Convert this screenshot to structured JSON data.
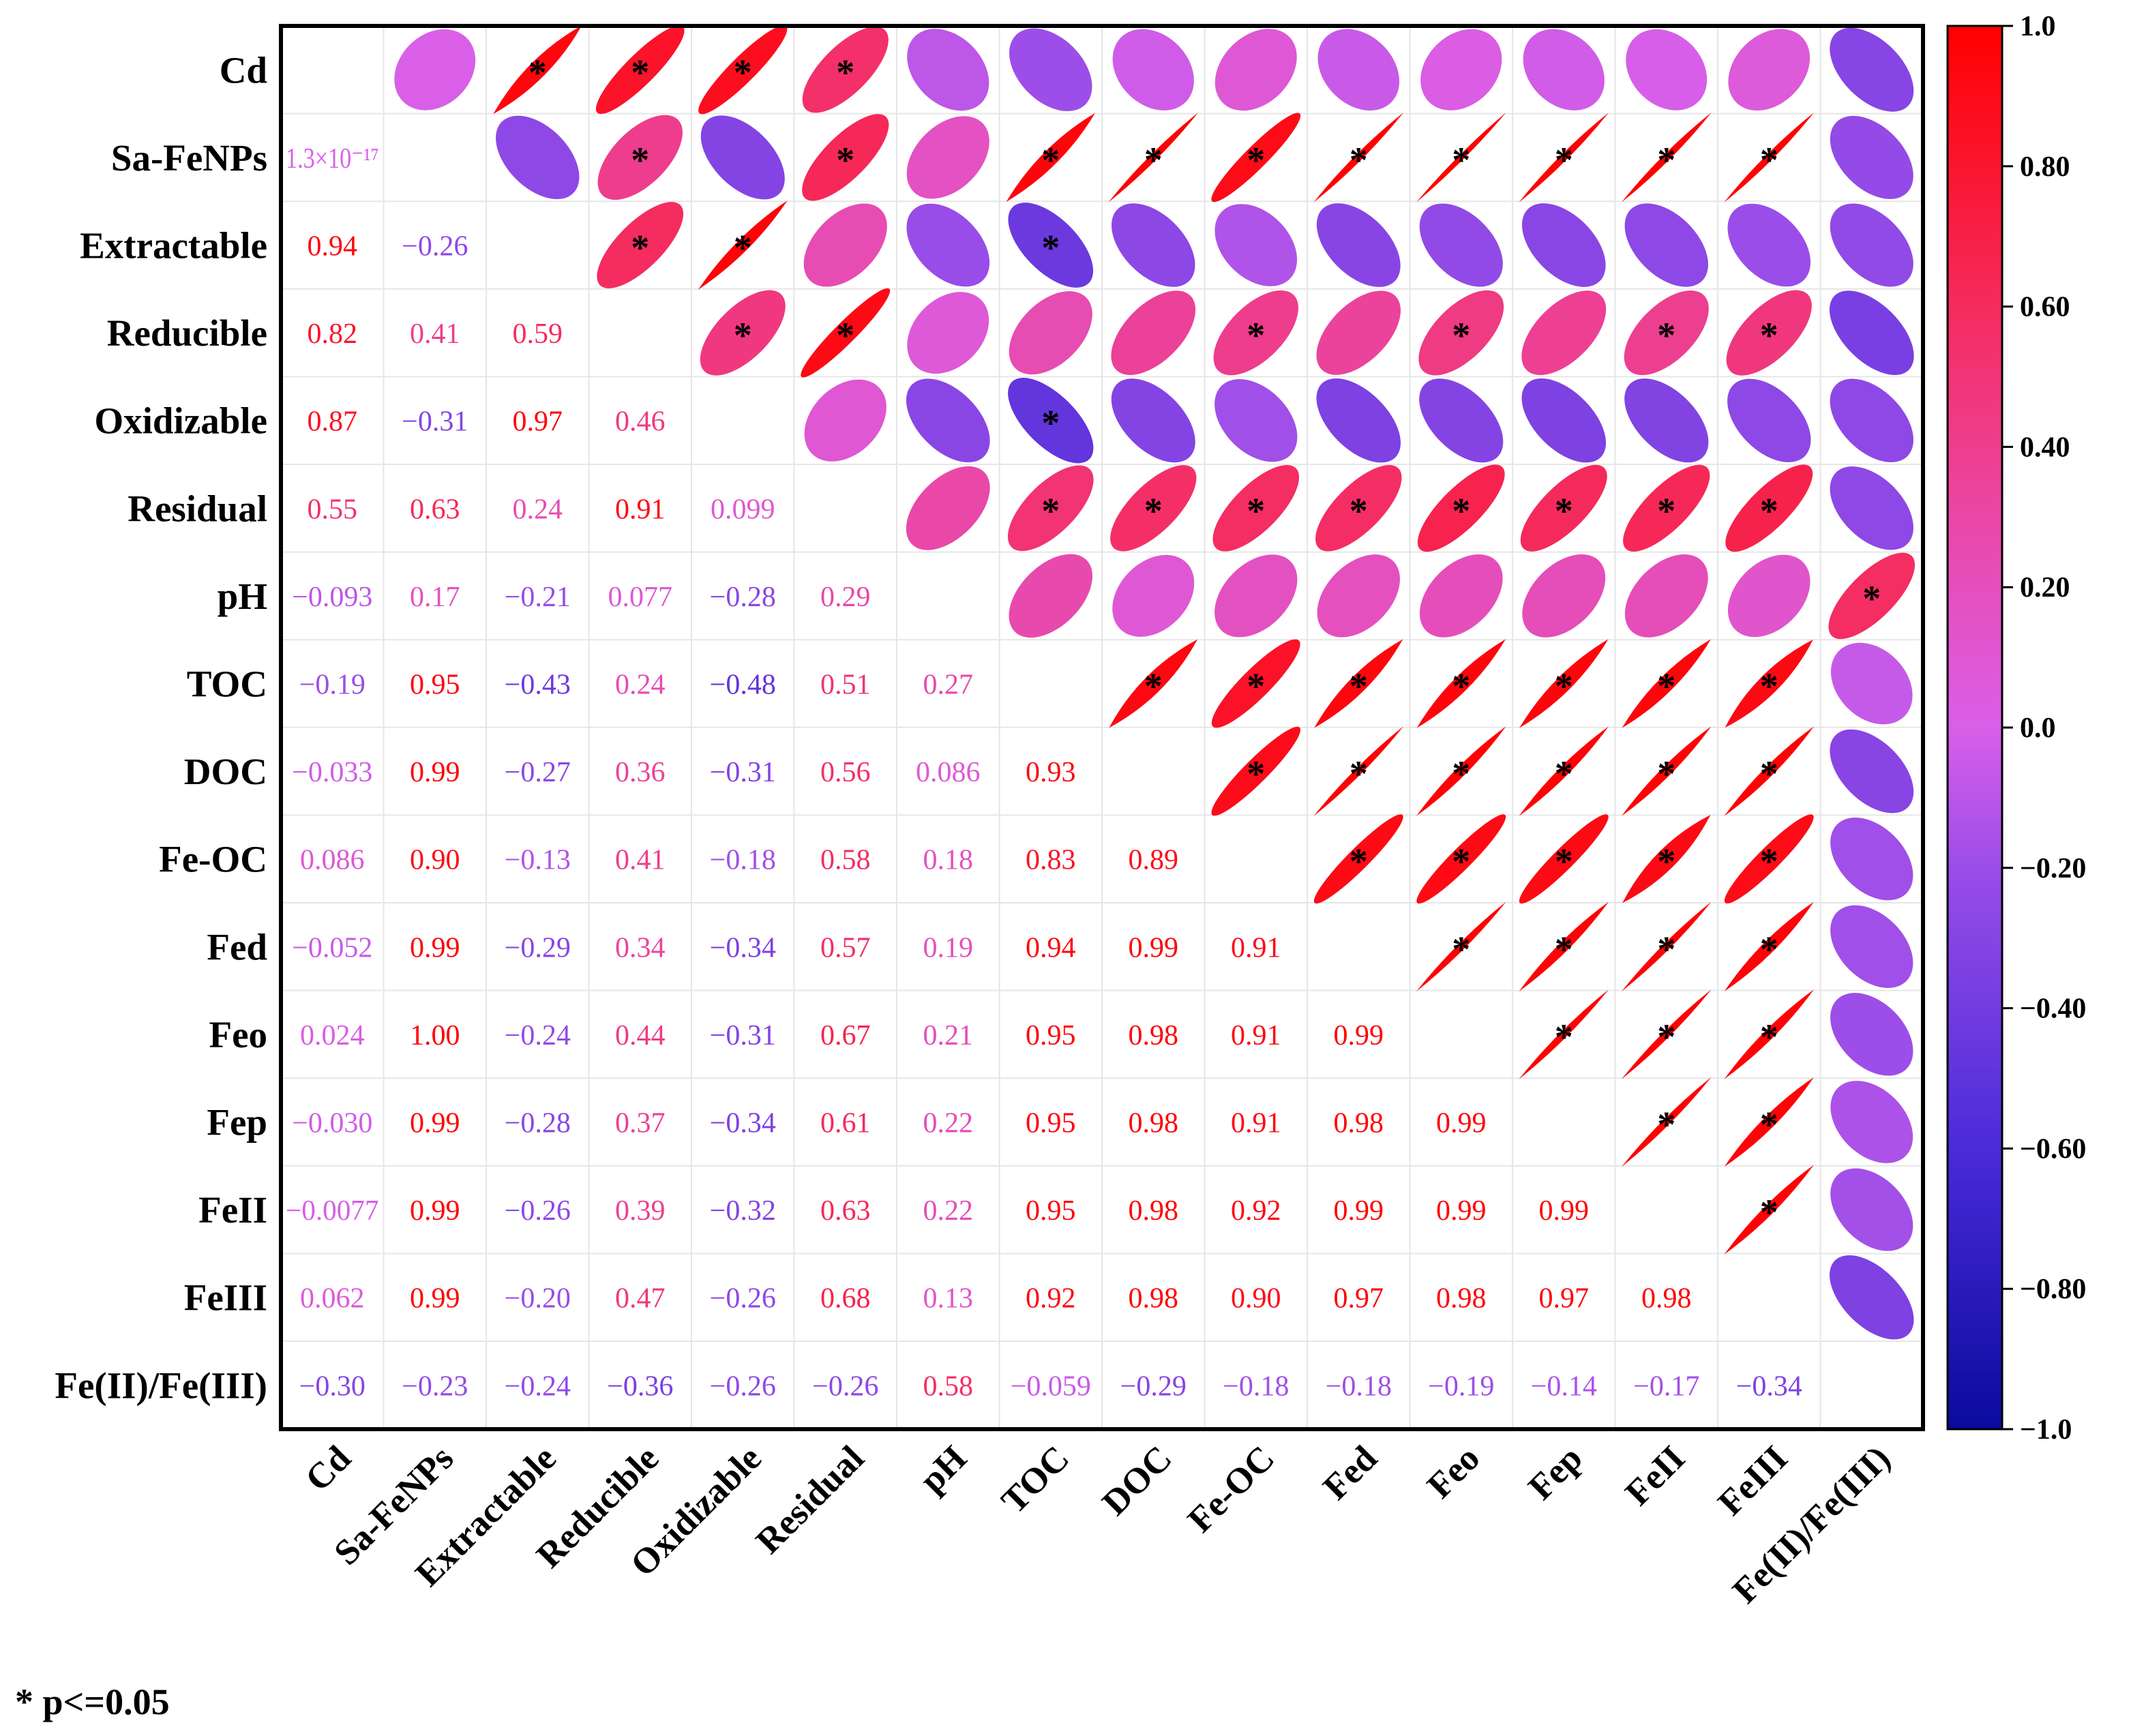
{
  "chart_data": {
    "type": "heatmap",
    "subtype": "correlation-matrix",
    "lower_triangle": "numeric correlation coefficients",
    "upper_triangle": "ellipses coloured by correlation, asterisk marks significance",
    "variables": [
      "Cd",
      "Sa-FeNPs",
      "Extractable",
      "Reducible",
      "Oxidizable",
      "Residual",
      "pH",
      "TOC",
      "DOC",
      "Fe-OC",
      "Fed",
      "Feo",
      "Fep",
      "FeII",
      "FeIII",
      "Fe(II)/Fe(III)"
    ],
    "lower_labels": [
      [],
      [
        "1.3×10⁻¹⁷"
      ],
      [
        "0.94",
        "−0.26"
      ],
      [
        "0.82",
        "0.41",
        "0.59"
      ],
      [
        "0.87",
        "−0.31",
        "0.97",
        "0.46"
      ],
      [
        "0.55",
        "0.63",
        "0.24",
        "0.91",
        "0.099"
      ],
      [
        "−0.093",
        "0.17",
        "−0.21",
        "0.077",
        "−0.28",
        "0.29"
      ],
      [
        "−0.19",
        "0.95",
        "−0.43",
        "0.24",
        "−0.48",
        "0.51",
        "0.27"
      ],
      [
        "−0.033",
        "0.99",
        "−0.27",
        "0.36",
        "−0.31",
        "0.56",
        "0.086",
        "0.93"
      ],
      [
        "0.086",
        "0.90",
        "−0.13",
        "0.41",
        "−0.18",
        "0.58",
        "0.18",
        "0.83",
        "0.89"
      ],
      [
        "−0.052",
        "0.99",
        "−0.29",
        "0.34",
        "−0.34",
        "0.57",
        "0.19",
        "0.94",
        "0.99",
        "0.91"
      ],
      [
        "0.024",
        "1.00",
        "−0.24",
        "0.44",
        "−0.31",
        "0.67",
        "0.21",
        "0.95",
        "0.98",
        "0.91",
        "0.99"
      ],
      [
        "−0.030",
        "0.99",
        "−0.28",
        "0.37",
        "−0.34",
        "0.61",
        "0.22",
        "0.95",
        "0.98",
        "0.91",
        "0.98",
        "0.99"
      ],
      [
        "−0.0077",
        "0.99",
        "−0.26",
        "0.39",
        "−0.32",
        "0.63",
        "0.22",
        "0.95",
        "0.98",
        "0.92",
        "0.99",
        "0.99",
        "0.99"
      ],
      [
        "0.062",
        "0.99",
        "−0.20",
        "0.47",
        "−0.26",
        "0.68",
        "0.13",
        "0.92",
        "0.98",
        "0.90",
        "0.97",
        "0.98",
        "0.97",
        "0.98"
      ],
      [
        "−0.30",
        "−0.23",
        "−0.24",
        "−0.36",
        "−0.26",
        "−0.26",
        "0.58",
        "−0.059",
        "−0.29",
        "−0.18",
        "−0.18",
        "−0.19",
        "−0.14",
        "−0.17",
        "−0.34"
      ]
    ],
    "significant_pairs": [
      [
        0,
        2
      ],
      [
        0,
        3
      ],
      [
        0,
        4
      ],
      [
        0,
        5
      ],
      [
        1,
        3
      ],
      [
        1,
        5
      ],
      [
        1,
        7
      ],
      [
        1,
        8
      ],
      [
        1,
        9
      ],
      [
        1,
        10
      ],
      [
        1,
        11
      ],
      [
        1,
        12
      ],
      [
        1,
        13
      ],
      [
        1,
        14
      ],
      [
        2,
        3
      ],
      [
        2,
        4
      ],
      [
        2,
        7
      ],
      [
        3,
        4
      ],
      [
        3,
        5
      ],
      [
        3,
        9
      ],
      [
        3,
        11
      ],
      [
        3,
        13
      ],
      [
        3,
        14
      ],
      [
        4,
        7
      ],
      [
        5,
        7
      ],
      [
        5,
        8
      ],
      [
        5,
        9
      ],
      [
        5,
        10
      ],
      [
        5,
        11
      ],
      [
        5,
        12
      ],
      [
        5,
        13
      ],
      [
        5,
        14
      ],
      [
        6,
        15
      ],
      [
        7,
        8
      ],
      [
        7,
        9
      ],
      [
        7,
        10
      ],
      [
        7,
        11
      ],
      [
        7,
        12
      ],
      [
        7,
        13
      ],
      [
        7,
        14
      ],
      [
        8,
        9
      ],
      [
        8,
        10
      ],
      [
        8,
        11
      ],
      [
        8,
        12
      ],
      [
        8,
        13
      ],
      [
        8,
        14
      ],
      [
        9,
        10
      ],
      [
        9,
        11
      ],
      [
        9,
        12
      ],
      [
        9,
        13
      ],
      [
        9,
        14
      ],
      [
        10,
        11
      ],
      [
        10,
        12
      ],
      [
        10,
        13
      ],
      [
        10,
        14
      ],
      [
        11,
        12
      ],
      [
        11,
        13
      ],
      [
        11,
        14
      ],
      [
        12,
        13
      ],
      [
        12,
        14
      ],
      [
        13,
        14
      ]
    ],
    "colorbar": {
      "range": [
        -1.0,
        1.0
      ],
      "tick_labels": [
        "1.0",
        "0.80",
        "0.60",
        "0.40",
        "0.20",
        "0.0",
        "−0.20",
        "−0.40",
        "−0.60",
        "−0.80",
        "−1.0"
      ],
      "colors": {
        "low": "#0a0a9e",
        "mid": "#d95fe8",
        "high": "#ff0000"
      }
    },
    "footnote": "* p<=0.05"
  }
}
